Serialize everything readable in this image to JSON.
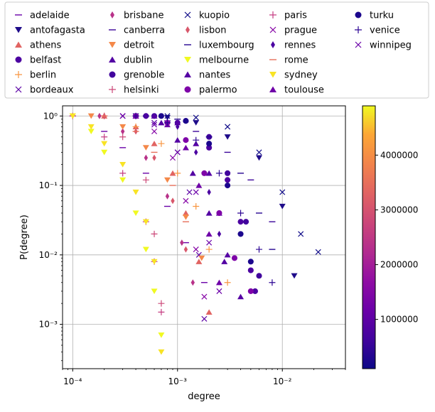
{
  "chart_data": {
    "type": "scatter",
    "xlabel": "degree",
    "ylabel": "P(degree)",
    "xscale": "log",
    "yscale": "log",
    "xlim": [
      8e-05,
      0.04
    ],
    "ylim": [
      0.00023,
      1.4
    ],
    "grid": true,
    "legend_position": "top, above plot",
    "x_tick_labels": [
      "10⁻⁴",
      "10⁻³",
      "10⁻²"
    ],
    "x_tick_values": [
      0.0001,
      0.001,
      0.01
    ],
    "y_tick_labels": [
      "10⁻³",
      "10⁻²",
      "10⁻¹",
      "10⁰"
    ],
    "y_tick_values": [
      0.001,
      0.01,
      0.1,
      1
    ],
    "colorbar": {
      "colormap": "plasma",
      "min": 100000,
      "max": 4900000,
      "tick_values": [
        1000000,
        2000000,
        3000000,
        4000000
      ],
      "tick_labels": [
        "1000000",
        "2000000",
        "3000000",
        "4000000"
      ]
    },
    "series": [
      {
        "name": "adelaide",
        "marker": "hline",
        "color": "#6a00a8",
        "x": [
          0.0001,
          0.0002,
          0.0003,
          0.0005,
          0.0008,
          0.0012,
          0.0018
        ],
        "y": [
          1.0,
          0.6,
          0.35,
          0.15,
          0.05,
          0.015,
          0.004
        ]
      },
      {
        "name": "antofagasta",
        "marker": "tri-down",
        "color": "#1f0c8a",
        "x": [
          0.0004,
          0.0008,
          0.0015,
          0.003,
          0.006,
          0.01,
          0.013
        ],
        "y": [
          1.0,
          0.95,
          0.8,
          0.5,
          0.25,
          0.05,
          0.005
        ]
      },
      {
        "name": "athens",
        "marker": "tri-up",
        "color": "#e16462",
        "x": [
          0.0002,
          0.0004,
          0.0006,
          0.0009,
          0.0012,
          0.0016,
          0.002
        ],
        "y": [
          1.0,
          0.7,
          0.4,
          0.15,
          0.04,
          0.008,
          0.0015
        ]
      },
      {
        "name": "belfast",
        "marker": "circle",
        "color": "#4c02a1",
        "x": [
          0.0005,
          0.001,
          0.002,
          0.003,
          0.004,
          0.005,
          0.0055
        ],
        "y": [
          1.0,
          0.8,
          0.35,
          0.12,
          0.03,
          0.006,
          0.003
        ]
      },
      {
        "name": "berlin",
        "marker": "plus",
        "color": "#f89540",
        "x": [
          0.0002,
          0.0004,
          0.0007,
          0.001,
          0.0015,
          0.002,
          0.003
        ],
        "y": [
          1.0,
          0.7,
          0.4,
          0.15,
          0.05,
          0.012,
          0.004
        ]
      },
      {
        "name": "bordeaux",
        "marker": "x",
        "color": "#5c01a6",
        "x": [
          0.0003,
          0.0006,
          0.001,
          0.0013,
          0.0016,
          0.0018
        ],
        "y": [
          1.0,
          0.8,
          0.3,
          0.08,
          0.01,
          0.0012
        ]
      },
      {
        "name": "brisbane",
        "marker": "diamond-thin",
        "color": "#b83289",
        "x": [
          0.00018,
          0.0003,
          0.0005,
          0.0008,
          0.0011,
          0.0014
        ],
        "y": [
          1.0,
          0.6,
          0.25,
          0.07,
          0.015,
          0.004
        ]
      },
      {
        "name": "canberra",
        "marker": "hline",
        "color": "#3b049a",
        "x": [
          0.0004,
          0.0008,
          0.0015,
          0.003,
          0.005,
          0.008
        ],
        "y": [
          1.0,
          0.85,
          0.6,
          0.3,
          0.12,
          0.03
        ]
      },
      {
        "name": "detroit",
        "marker": "tri-down",
        "color": "#f48849",
        "x": [
          0.00015,
          0.0003,
          0.0005,
          0.0008,
          0.0012,
          0.0017
        ],
        "y": [
          1.0,
          0.7,
          0.35,
          0.12,
          0.035,
          0.009
        ]
      },
      {
        "name": "dublin",
        "marker": "tri-up",
        "color": "#5302a3",
        "x": [
          0.0004,
          0.0007,
          0.001,
          0.0014,
          0.002,
          0.0028
        ],
        "y": [
          1.0,
          0.8,
          0.45,
          0.15,
          0.04,
          0.008
        ]
      },
      {
        "name": "grenoble",
        "marker": "circle",
        "color": "#41049d",
        "x": [
          0.0006,
          0.0012,
          0.002,
          0.003,
          0.0045,
          0.006
        ],
        "y": [
          1.0,
          0.85,
          0.5,
          0.15,
          0.03,
          0.005
        ]
      },
      {
        "name": "helsinki",
        "marker": "plus",
        "color": "#cc4778",
        "x": [
          0.0002,
          0.0003,
          0.0005,
          0.0006,
          0.0007
        ],
        "y": [
          1.0,
          0.5,
          0.12,
          0.02,
          0.002
        ]
      },
      {
        "name": "kuopio",
        "marker": "x",
        "color": "#0d0887",
        "x": [
          0.0008,
          0.0015,
          0.003,
          0.006,
          0.01,
          0.015,
          0.022
        ],
        "y": [
          1.0,
          0.95,
          0.7,
          0.3,
          0.08,
          0.02,
          0.011
        ]
      },
      {
        "name": "lisbon",
        "marker": "diamond-thin",
        "color": "#d8576b",
        "x": [
          0.0002,
          0.0004,
          0.0006,
          0.0009,
          0.0012
        ],
        "y": [
          1.0,
          0.6,
          0.25,
          0.06,
          0.012
        ]
      },
      {
        "name": "luxembourg",
        "marker": "hline",
        "color": "#260591",
        "x": [
          0.0005,
          0.001,
          0.002,
          0.004,
          0.006,
          0.008
        ],
        "y": [
          1.0,
          0.9,
          0.5,
          0.15,
          0.04,
          0.012
        ]
      },
      {
        "name": "melbourne",
        "marker": "tri-down",
        "color": "#f0f921",
        "x": [
          0.0001,
          0.00015,
          0.0002,
          0.0003,
          0.0004,
          0.0005,
          0.0006,
          0.0007
        ],
        "y": [
          1.0,
          0.6,
          0.3,
          0.12,
          0.04,
          0.012,
          0.003,
          0.0007
        ]
      },
      {
        "name": "nantes",
        "marker": "tri-up",
        "color": "#5601a4",
        "x": [
          0.0006,
          0.001,
          0.0015,
          0.002,
          0.0025,
          0.003,
          0.004
        ],
        "y": [
          1.0,
          0.8,
          0.4,
          0.15,
          0.04,
          0.01,
          0.0025
        ]
      },
      {
        "name": "palermo",
        "marker": "circle",
        "color": "#7e03a8",
        "x": [
          0.0004,
          0.0008,
          0.0012,
          0.0018,
          0.0025,
          0.0035,
          0.005
        ],
        "y": [
          1.0,
          0.8,
          0.45,
          0.15,
          0.04,
          0.009,
          0.003
        ]
      },
      {
        "name": "paris",
        "marker": "plus",
        "color": "#c53d82",
        "x": [
          0.0001,
          0.0002,
          0.0003,
          0.0005,
          0.0006,
          0.0007
        ],
        "y": [
          1.0,
          0.5,
          0.15,
          0.03,
          0.008,
          0.0015
        ]
      },
      {
        "name": "prague",
        "marker": "x",
        "color": "#8606a6",
        "x": [
          0.0003,
          0.0006,
          0.0009,
          0.0012,
          0.0015,
          0.0018
        ],
        "y": [
          1.0,
          0.6,
          0.25,
          0.06,
          0.012,
          0.0025
        ]
      },
      {
        "name": "rennes",
        "marker": "diamond-thin",
        "color": "#4b03a1",
        "x": [
          0.0005,
          0.001,
          0.0015,
          0.002,
          0.0025
        ],
        "y": [
          1.0,
          0.7,
          0.3,
          0.08,
          0.02
        ]
      },
      {
        "name": "rome",
        "marker": "hline",
        "color": "#e76f5a",
        "x": [
          0.0002,
          0.0004,
          0.0006,
          0.0009,
          0.0012
        ],
        "y": [
          1.0,
          0.6,
          0.3,
          0.1,
          0.03
        ]
      },
      {
        "name": "sydney",
        "marker": "tri-down",
        "color": "#f8e325",
        "x": [
          0.0001,
          0.00015,
          0.0002,
          0.0003,
          0.0004,
          0.0005,
          0.0006,
          0.0007
        ],
        "y": [
          1.0,
          0.7,
          0.4,
          0.2,
          0.08,
          0.03,
          0.008,
          0.0004
        ]
      },
      {
        "name": "toulouse",
        "marker": "tri-up",
        "color": "#6f00a8",
        "x": [
          0.0004,
          0.0008,
          0.0012,
          0.0016,
          0.002,
          0.0025
        ],
        "y": [
          1.0,
          0.75,
          0.35,
          0.1,
          0.02,
          0.004
        ]
      },
      {
        "name": "turku",
        "marker": "circle",
        "color": "#1b068d",
        "x": [
          0.0007,
          0.0012,
          0.002,
          0.003,
          0.004,
          0.005
        ],
        "y": [
          1.0,
          0.85,
          0.4,
          0.1,
          0.02,
          0.008
        ]
      },
      {
        "name": "venice",
        "marker": "plus",
        "color": "#2c0594",
        "x": [
          0.0004,
          0.0008,
          0.0015,
          0.0025,
          0.004,
          0.006,
          0.008
        ],
        "y": [
          1.0,
          0.8,
          0.45,
          0.15,
          0.04,
          0.012,
          0.004
        ]
      },
      {
        "name": "winnipeg",
        "marker": "x",
        "color": "#6a00a8",
        "x": [
          0.0003,
          0.0006,
          0.001,
          0.0015,
          0.002,
          0.0025
        ],
        "y": [
          1.0,
          0.75,
          0.3,
          0.08,
          0.015,
          0.003
        ]
      }
    ]
  }
}
